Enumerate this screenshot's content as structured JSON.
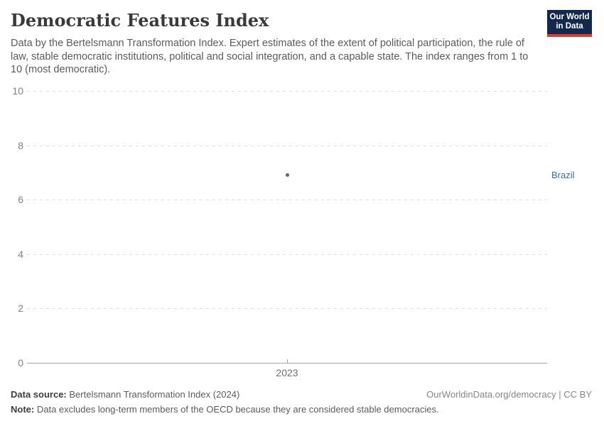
{
  "header": {
    "title": "Democratic Features Index",
    "subtitle": "Data by the Bertelsmann Transformation Index. Expert estimates of the extent of political participation, the rule of law, stable democratic institutions, political and social integration, and a capable state. The index ranges from 1 to 10 (most democratic).",
    "logo": {
      "line1": "Our World",
      "line2": "in Data",
      "bg_color": "#12294d",
      "accent_color": "#d93a3a"
    }
  },
  "chart_data": {
    "type": "scatter",
    "title": "Democratic Features Index",
    "series": [
      {
        "name": "Brazil",
        "x": [
          2023
        ],
        "y": [
          6.9
        ]
      }
    ],
    "xlabel": "",
    "ylabel": "",
    "ylim": [
      0,
      10
    ],
    "yticks": [
      0,
      2,
      4,
      6,
      8,
      10
    ],
    "xticks": [
      2023
    ],
    "xtick_labels": [
      "2023"
    ],
    "grid": "horizontal-dashed",
    "legend_position": "label-right-of-plot",
    "point_color": "#4C6A9C",
    "label_color": "#3d6aa6"
  },
  "footer": {
    "data_source_label": "Data source:",
    "data_source_value": "Bertelsmann Transformation Index (2024)",
    "right_text": "OurWorldinData.org/democracy | CC BY",
    "note_label": "Note:",
    "note_value": "Data excludes long-term members of the OECD because they are considered stable democracies."
  }
}
